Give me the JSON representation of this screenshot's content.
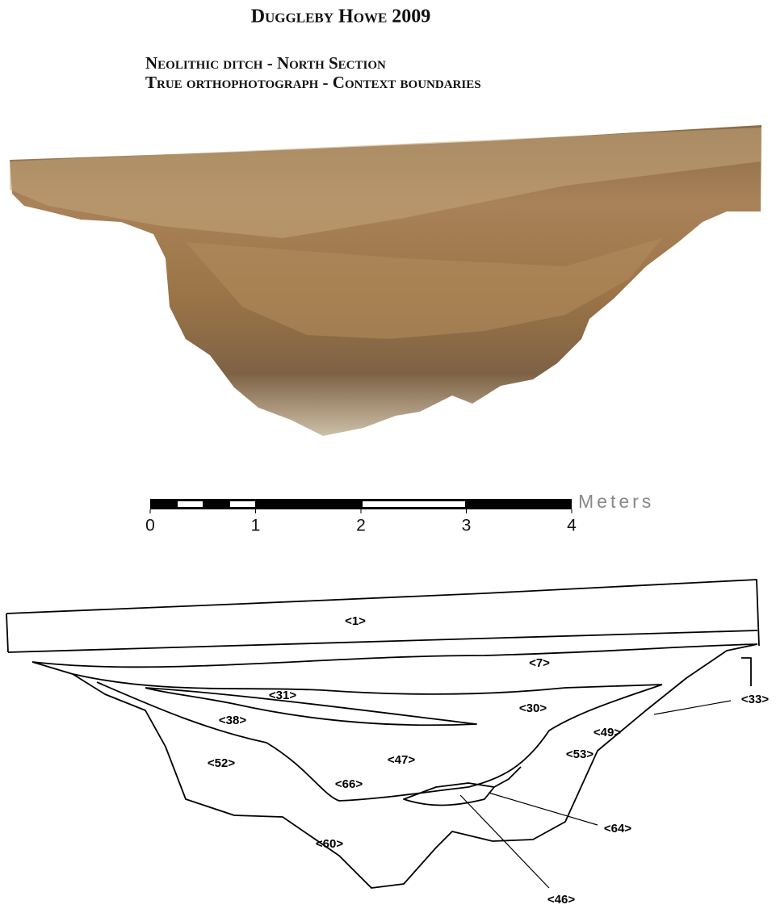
{
  "header": {
    "title": "Duggleby Howe 2009",
    "subtitle_lines": [
      "Neolithic ditch - North Section",
      "True orthophotograph - Context boundaries"
    ]
  },
  "scale_bar": {
    "ticks": [
      0,
      1,
      2,
      3,
      4
    ],
    "unit": "Meters"
  },
  "contexts": [
    "<1>",
    "<7>",
    "<31>",
    "<30>",
    "<38>",
    "<33>",
    "<49>",
    "<53>",
    "<47>",
    "<52>",
    "<66>",
    "<64>",
    "<60>",
    "<46>"
  ]
}
